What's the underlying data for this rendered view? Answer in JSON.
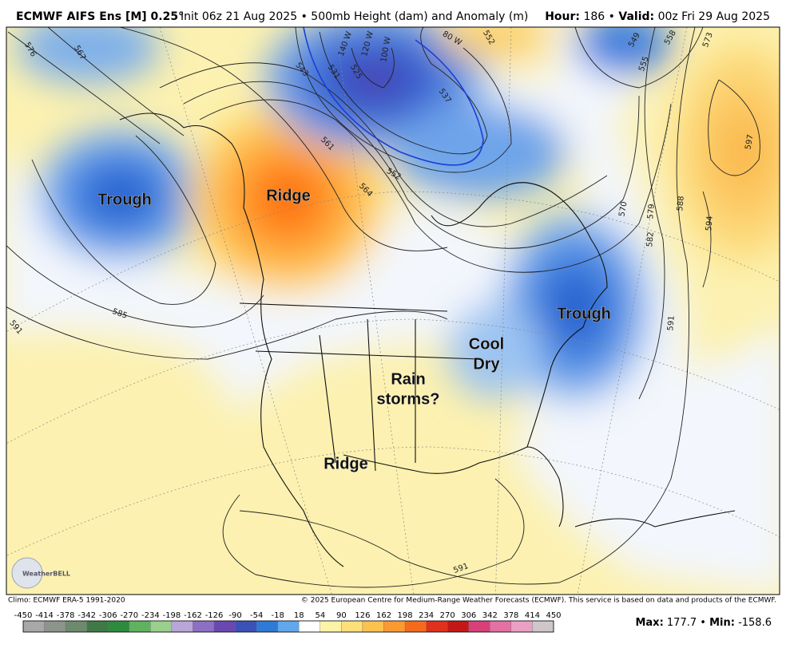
{
  "header": {
    "title": "ECMWF AIFS Ens [M] 0.25°",
    "subtitle": "Init 06z 21 Aug 2025 • 500mb Height (dam) and Anomaly (m)",
    "right": {
      "hour_label": "Hour:",
      "hour": "186",
      "separator": "•",
      "valid_label": "Valid:",
      "valid": "00z Fri 29 Aug 2025"
    }
  },
  "annotations": [
    {
      "lines": [
        "Trough"
      ]
    },
    {
      "lines": [
        "Ridge"
      ]
    },
    {
      "lines": [
        "Trough"
      ]
    },
    {
      "lines": [
        "Cool",
        "Dry"
      ]
    },
    {
      "lines": [
        "Rain",
        "storms?"
      ]
    },
    {
      "lines": [
        "Ridge"
      ]
    }
  ],
  "contour_labels": [
    "576",
    "567",
    "543",
    "531",
    "525",
    "537",
    "552",
    "549",
    "558",
    "555",
    "573",
    "597",
    "594",
    "588",
    "579",
    "582",
    "570",
    "591",
    "585",
    "591",
    "561",
    "564",
    "552",
    "591",
    "140 W",
    "120 W",
    "100 W",
    "80 W"
  ],
  "logo": {
    "text": "WeatherBELL"
  },
  "footer": {
    "climo": "Climo: ECMWF ERA-5 1991-2020",
    "copyright": "© 2025 European Centre for Medium-Range Weather Forecasts (ECMWF). This service is based on data and products of the ECMWF."
  },
  "colorbar": {
    "ticks": [
      -450,
      -414,
      -378,
      -342,
      -306,
      -270,
      -234,
      -198,
      -162,
      -126,
      -90,
      -54,
      -18,
      18,
      54,
      90,
      126,
      162,
      198,
      234,
      270,
      306,
      342,
      378,
      414,
      450
    ]
  },
  "stats": {
    "max_label": "Max:",
    "max": 177.7,
    "separator": "•",
    "min_label": "Min:",
    "min": -158.6
  }
}
